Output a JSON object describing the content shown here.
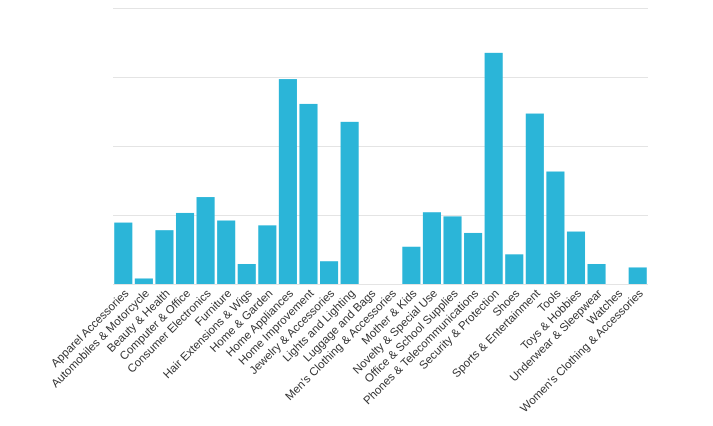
{
  "chart_data": {
    "type": "bar",
    "title": "",
    "xlabel": "",
    "ylabel": "",
    "ylim": [
      0,
      4
    ],
    "grid": true,
    "bar_color": "#2bb5d8",
    "grid_color": "#e4e4e4",
    "categories": [
      "Apparel Accessories",
      "Automobiles & Motorcycle",
      "Beauty & Health",
      "Computer & Office",
      "Consumer Electronics",
      "Furniture",
      "Hair Extensions & Wigs",
      "Home & Garden",
      "Home Appliances",
      "Home Improvement",
      "Jewelry & Accessories",
      "Lights and Lighting",
      "Luggage and Bags",
      "Men's Clothing & Accessories",
      "Mother & Kids",
      "Novelty & Special Use",
      "Office & School Supplies",
      "Phones & Telecommunications",
      "Security & Protection",
      "Shoes",
      "Sports & Entertainment",
      "Tools",
      "Toys & Hobbies",
      "Underwear & Sleepwear",
      "Watches",
      "Women's Clothing & Accessories"
    ],
    "values": [
      0.89,
      0.08,
      0.78,
      1.03,
      1.26,
      0.92,
      0.29,
      0.85,
      2.97,
      2.61,
      0.33,
      2.35,
      0,
      0,
      0.54,
      1.04,
      0.98,
      0.74,
      3.35,
      0.43,
      2.47,
      1.63,
      0.76,
      0.29,
      0,
      0.24
    ]
  }
}
